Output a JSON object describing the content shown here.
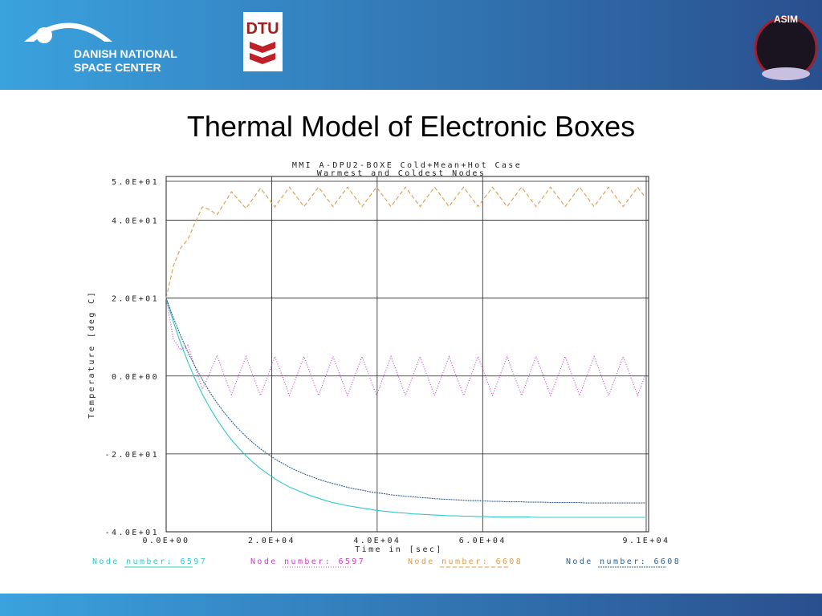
{
  "header": {
    "org_lines": [
      "DANISH NATIONAL",
      "SPACE CENTER"
    ],
    "dtu": "DTU",
    "asim": "ASIM"
  },
  "slide_title": "Thermal Model of Electronic Boxes",
  "chart_data": {
    "type": "line",
    "title": "MMI A-DPU2-BOXE Cold+Mean+Hot Case",
    "subtitle": "Warmest and Coldest Nodes",
    "x_label": "Time in [sec]",
    "y_label": "Temperature [deg C]",
    "xlim": [
      0,
      91000
    ],
    "xticks": [
      {
        "value": 0,
        "label": "0.0E+00"
      },
      {
        "value": 20000,
        "label": "2.0E+04"
      },
      {
        "value": 40000,
        "label": "4.0E+04"
      },
      {
        "value": 60000,
        "label": "6.0E+04"
      },
      {
        "value": 91000,
        "label": "9.1E+04"
      }
    ],
    "ylim": [
      -40,
      50
    ],
    "yticks": [
      {
        "value": -40,
        "label": "-4.0E+01"
      },
      {
        "value": -20,
        "label": "-2.0E+01"
      },
      {
        "value": 0,
        "label": "0.0E+00"
      },
      {
        "value": 20,
        "label": "2.0E+01"
      },
      {
        "value": 40,
        "label": "4.0E+01"
      },
      {
        "value": 50,
        "label": "5.0E+01"
      }
    ],
    "grid": true,
    "x": [
      0,
      1375,
      2750,
      4125,
      5500,
      6875,
      8250,
      9625,
      11000,
      12375,
      13750,
      15125,
      16500,
      17875,
      19250,
      20625,
      22000,
      23375,
      24750,
      26125,
      27500,
      28875,
      30250,
      31625,
      33000,
      34375,
      35750,
      37125,
      38500,
      39875,
      41250,
      42625,
      44000,
      45375,
      46750,
      48125,
      49500,
      50875,
      52250,
      53625,
      55000,
      56375,
      57750,
      59125,
      60500,
      61875,
      63250,
      64625,
      66000,
      67375,
      68750,
      70125,
      71500,
      72875,
      74250,
      75625,
      77000,
      78375,
      79750,
      81125,
      82500,
      83875,
      85250,
      86625,
      88000,
      89375,
      90750
    ],
    "series": [
      {
        "name": "Node number: 6597",
        "color": "#2fc8cc",
        "dash": "none",
        "values": [
          20,
          13.9,
          8.4,
          3.6,
          -0.8,
          -4.7,
          -8.1,
          -11.2,
          -13.9,
          -16.4,
          -18.5,
          -20.5,
          -22.2,
          -23.8,
          -25.1,
          -26.4,
          -27.5,
          -28.5,
          -29.3,
          -30.1,
          -30.8,
          -31.4,
          -32.0,
          -32.5,
          -32.9,
          -33.3,
          -33.6,
          -33.9,
          -34.2,
          -34.5,
          -34.7,
          -34.9,
          -35.1,
          -35.2,
          -35.4,
          -35.5,
          -35.6,
          -35.7,
          -35.8,
          -35.9,
          -35.9,
          -36.0,
          -36.0,
          -36.1,
          -36.1,
          -36.2,
          -36.2,
          -36.2,
          -36.2,
          -36.2,
          -36.2,
          -36.3,
          -36.3,
          -36.3,
          -36.3,
          -36.3,
          -36.3,
          -36.3,
          -36.3,
          -36.3,
          -36.3,
          -36.3,
          -36.3,
          -36.3,
          -36.3,
          -36.3,
          -36.3
        ]
      },
      {
        "name": "Node number: 6597",
        "color": "#c83cc8",
        "dash": "1 2",
        "values": [
          20,
          9.4,
          6.7,
          7.9,
          2.2,
          -3.4,
          0.7,
          5.3,
          0.2,
          -4.8,
          0.1,
          5.0,
          0,
          -5,
          0,
          5,
          0,
          -5,
          0,
          5,
          0,
          -5,
          0,
          5,
          0,
          -5,
          0,
          5,
          0,
          -5,
          0,
          5,
          0,
          -5,
          0,
          5,
          0,
          -5,
          0,
          5,
          0,
          -5,
          0,
          5,
          0,
          -5,
          0,
          5,
          0,
          -5,
          0,
          5,
          0,
          -5,
          0,
          5,
          0,
          -5,
          0,
          5,
          0,
          -5,
          0,
          5,
          0,
          -5,
          0
        ]
      },
      {
        "name": "Node number: 6608",
        "color": "#e09a4a",
        "dash": "5 3",
        "values": [
          20,
          28.3,
          32.9,
          35.1,
          39.4,
          43.4,
          42.7,
          41.4,
          44.3,
          47.3,
          45.2,
          43.0,
          45.6,
          48.2,
          45.8,
          43.4,
          46,
          48.5,
          46,
          43.5,
          46,
          48.5,
          46,
          43.5,
          46,
          48.5,
          46,
          43.5,
          46,
          48.5,
          46,
          43.5,
          46,
          48.5,
          46,
          43.5,
          46,
          48.5,
          46,
          43.5,
          46,
          48.5,
          46,
          43.5,
          46,
          48.5,
          46,
          43.5,
          46,
          48.5,
          46,
          43.5,
          46,
          48.5,
          46,
          43.5,
          46,
          48.5,
          46,
          43.5,
          46,
          48.5,
          46,
          43.5,
          46,
          48.5,
          46
        ]
      },
      {
        "name": "Node number: 6608",
        "color": "#2f5f8f",
        "dash": "2 1",
        "values": [
          20,
          14.9,
          10.3,
          6.1,
          2.4,
          -1.0,
          -4.1,
          -6.9,
          -9.4,
          -11.6,
          -13.7,
          -15.5,
          -17.2,
          -18.7,
          -20.0,
          -21.3,
          -22.4,
          -23.4,
          -24.3,
          -25.1,
          -25.8,
          -26.5,
          -27.1,
          -27.6,
          -28.1,
          -28.6,
          -29.0,
          -29.3,
          -29.7,
          -30.0,
          -30.2,
          -30.5,
          -30.7,
          -30.9,
          -31.0,
          -31.2,
          -31.3,
          -31.5,
          -31.6,
          -31.7,
          -31.8,
          -31.9,
          -32.0,
          -32.0,
          -32.1,
          -32.2,
          -32.2,
          -32.3,
          -32.3,
          -32.3,
          -32.4,
          -32.4,
          -32.4,
          -32.5,
          -32.5,
          -32.5,
          -32.5,
          -32.5,
          -32.6,
          -32.6,
          -32.6,
          -32.6,
          -32.6,
          -32.6,
          -32.6,
          -32.6,
          -32.6
        ]
      }
    ]
  }
}
